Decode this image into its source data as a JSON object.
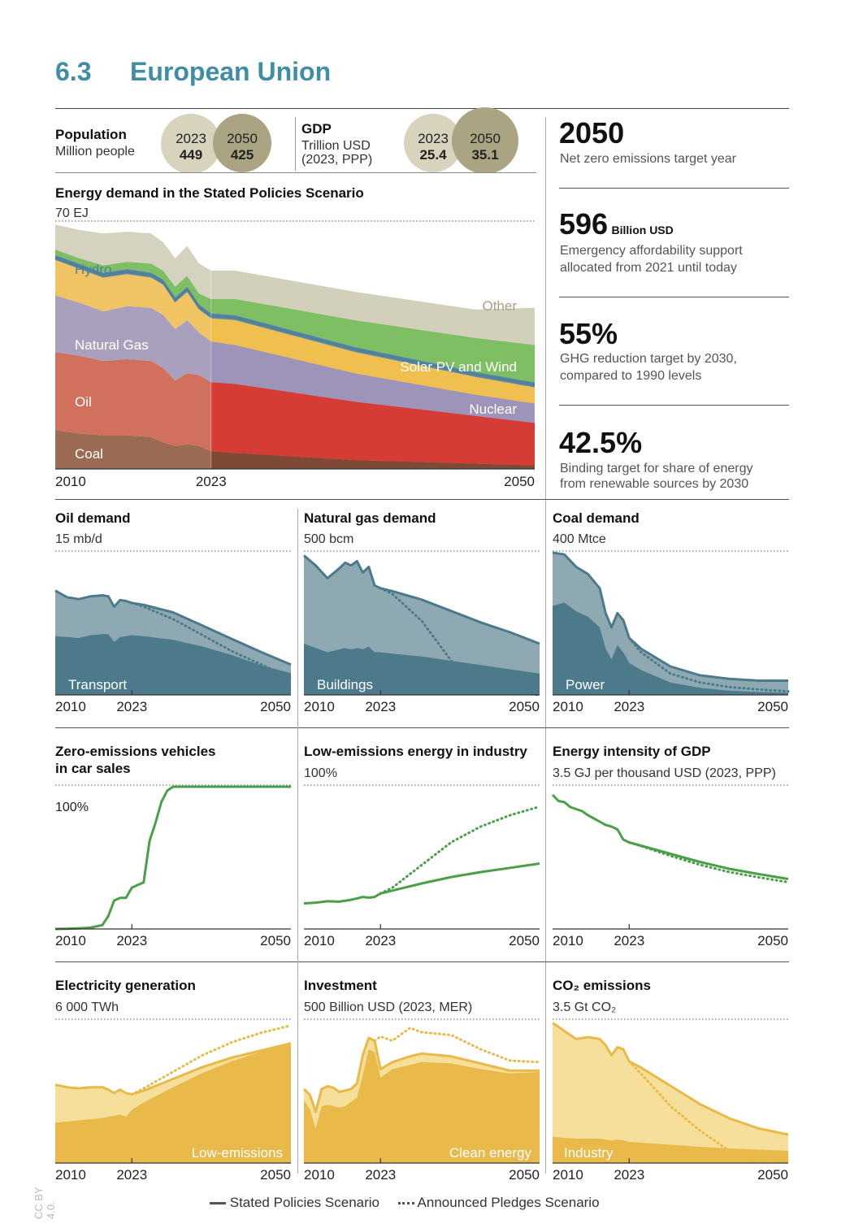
{
  "header": {
    "section_number": "6.3",
    "title": "European Union"
  },
  "population": {
    "label": "Population",
    "unit": "Million people",
    "y1": "2023",
    "v1": "449",
    "y2": "2050",
    "v2": "425"
  },
  "gdp": {
    "label": "GDP",
    "unit": "Trillion USD",
    "unit2": "(2023, PPP)",
    "y1": "2023",
    "v1": "25.4",
    "y2": "2050",
    "v2": "35.1"
  },
  "facts": [
    {
      "value": "2050",
      "unit": "",
      "line1": "Net zero emissions target year",
      "line2": ""
    },
    {
      "value": "596",
      "unit": "Billion USD",
      "line1": "Emergency affordability support",
      "line2": "allocated from 2021 until today"
    },
    {
      "value": "55%",
      "unit": "",
      "line1": "GHG reduction target by 2030,",
      "line2": "compared to 1990 levels"
    },
    {
      "value": "42.5%",
      "unit": "",
      "line1": "Binding target for share of energy",
      "line2": "from renewable sources by 2030"
    }
  ],
  "legend": {
    "sps": "Stated Policies Scenario",
    "aps": "Announced Pledges Scenario"
  },
  "license": "CC BY 4.0.",
  "colors": {
    "accent": "#3f8ea3",
    "teal_dark": "#4c7a8b",
    "teal_light": "#8fa9b3",
    "green": "#4a9f48",
    "gold": "#e9b949",
    "gold_light": "#f6df9a"
  },
  "chart_data": [
    {
      "id": "energy",
      "type": "area",
      "title": "Energy demand in the Stated Policies Scenario",
      "ymax_label": "70 EJ",
      "ylim": [
        0,
        70
      ],
      "x": [
        2010,
        2012,
        2014,
        2016,
        2018,
        2019,
        2020,
        2021,
        2022,
        2023,
        2025,
        2030,
        2035,
        2040,
        2045,
        2050
      ],
      "x_ticks": [
        "2010",
        "2023",
        "2050"
      ],
      "series": [
        {
          "name": "Coal",
          "color": "#9a6a52",
          "values": [
            11,
            10,
            9.5,
            9.5,
            9,
            7.5,
            6.5,
            7,
            6.5,
            5,
            4.5,
            3.5,
            2.5,
            2,
            1.5,
            1
          ]
        },
        {
          "name": "Oil",
          "color": "#d2705e",
          "values": [
            22,
            22,
            21,
            21.5,
            21.5,
            21,
            18.5,
            20,
            20,
            19.5,
            19.5,
            18,
            16.5,
            15,
            13.5,
            12
          ]
        },
        {
          "name": "Natural Gas",
          "color": "#a9a0bd",
          "values": [
            16,
            15,
            14,
            15,
            15,
            15,
            14.5,
            15,
            12,
            11.5,
            11,
            9.5,
            8,
            7,
            6,
            5.5
          ]
        },
        {
          "name": "Nuclear",
          "color": "#f1c463",
          "values": [
            10,
            9.5,
            9.5,
            9,
            8.5,
            8.5,
            7.5,
            8,
            6.5,
            6.5,
            7,
            6.5,
            6,
            5.5,
            5,
            4.5
          ]
        },
        {
          "name": "Hydro",
          "color": "#5f8da3",
          "values": [
            1.5,
            1.5,
            1.5,
            1.5,
            1.5,
            1.5,
            1.5,
            1.5,
            1.5,
            1.5,
            1.5,
            1.5,
            1.5,
            1.5,
            1.5,
            1.5
          ]
        },
        {
          "name": "Solar PV and Wind",
          "color": "#7fbf64",
          "values": [
            1.5,
            1.5,
            2,
            2,
            2.5,
            2.5,
            3,
            3,
            3,
            4,
            4.5,
            6,
            7.5,
            8.5,
            9.5,
            10.5
          ]
        },
        {
          "name": "Other",
          "color": "#d5d3bf",
          "values": [
            7,
            8,
            9,
            8.5,
            8.5,
            8,
            8,
            8.5,
            8.5,
            8,
            8,
            8,
            8,
            8,
            8,
            10.5
          ]
        }
      ]
    },
    {
      "id": "oil",
      "type": "area",
      "title": "Oil demand",
      "ymax_label": "15 mb/d",
      "ylim": [
        0,
        15
      ],
      "x": [
        2010,
        2012,
        2014,
        2016,
        2018,
        2019,
        2020,
        2021,
        2022,
        2023,
        2025,
        2030,
        2035,
        2040,
        2045,
        2050
      ],
      "x_ticks": [
        "2010",
        "2023",
        "2050"
      ],
      "area_label": "Transport",
      "series": [
        {
          "name": "Transport",
          "role": "inner",
          "values": [
            6.2,
            6.1,
            6.0,
            6.3,
            6.4,
            6.4,
            5.6,
            6.1,
            6.2,
            6.3,
            6.2,
            5.8,
            5.1,
            4.2,
            3.1,
            2.3
          ]
        },
        {
          "name": "Stated Policies Scenario",
          "role": "sps",
          "values": [
            11.0,
            10.3,
            10.1,
            10.4,
            10.5,
            10.4,
            9.3,
            10.0,
            9.9,
            9.7,
            9.5,
            8.7,
            7.3,
            5.9,
            4.5,
            3.2
          ]
        },
        {
          "name": "Announced Pledges Scenario",
          "role": "aps",
          "values": [
            null,
            null,
            null,
            null,
            null,
            null,
            null,
            null,
            null,
            9.7,
            9.3,
            8.0,
            6.3,
            4.6,
            3.2,
            1.8
          ]
        }
      ]
    },
    {
      "id": "gas",
      "type": "area",
      "title": "Natural gas demand",
      "ymax_label": "500 bcm",
      "ylim": [
        0,
        500
      ],
      "x": [
        2010,
        2012,
        2014,
        2016,
        2017,
        2018,
        2019,
        2020,
        2021,
        2022,
        2023,
        2025,
        2030,
        2035,
        2040,
        2045,
        2050
      ],
      "x_ticks": [
        "2010",
        "2023",
        "2050"
      ],
      "area_label": "Buildings",
      "series": [
        {
          "name": "Buildings",
          "role": "inner",
          "values": [
            180,
            165,
            150,
            160,
            165,
            160,
            165,
            160,
            170,
            150,
            150,
            145,
            135,
            120,
            105,
            90,
            75
          ]
        },
        {
          "name": "Stated Policies Scenario",
          "role": "sps",
          "values": [
            490,
            455,
            410,
            445,
            465,
            455,
            470,
            430,
            450,
            385,
            375,
            365,
            335,
            295,
            255,
            220,
            180
          ]
        },
        {
          "name": "Announced Pledges Scenario",
          "role": "aps",
          "values": [
            null,
            null,
            null,
            null,
            null,
            null,
            null,
            null,
            null,
            null,
            375,
            355,
            260,
            120,
            40,
            10,
            0
          ]
        }
      ]
    },
    {
      "id": "coal",
      "type": "area",
      "title": "Coal demand",
      "ymax_label": "400 Mtce",
      "ylim": [
        0,
        400
      ],
      "x": [
        2010,
        2012,
        2014,
        2016,
        2018,
        2019,
        2020,
        2021,
        2022,
        2023,
        2025,
        2030,
        2035,
        2040,
        2045,
        2050
      ],
      "x_ticks": [
        "2010",
        "2023",
        "2050"
      ],
      "area_label": "Power",
      "series": [
        {
          "name": "Power",
          "role": "inner",
          "values": [
            250,
            260,
            235,
            220,
            190,
            130,
            100,
            140,
            120,
            90,
            70,
            35,
            20,
            12,
            8,
            6
          ]
        },
        {
          "name": "Stated Policies Scenario",
          "role": "sps",
          "values": [
            400,
            395,
            360,
            340,
            300,
            230,
            190,
            230,
            210,
            160,
            130,
            80,
            55,
            45,
            40,
            40
          ]
        },
        {
          "name": "Announced Pledges Scenario",
          "role": "aps",
          "values": [
            null,
            null,
            null,
            null,
            null,
            null,
            null,
            null,
            null,
            160,
            120,
            60,
            35,
            22,
            15,
            10
          ]
        }
      ]
    },
    {
      "id": "zev",
      "type": "line",
      "title": "Zero-emissions vehicles",
      "title2": "in car sales",
      "ymax_label": "100%",
      "ylim": [
        0,
        110
      ],
      "x": [
        2010,
        2012,
        2014,
        2016,
        2018,
        2019,
        2020,
        2021,
        2022,
        2023,
        2024,
        2025,
        2026,
        2027,
        2028,
        2029,
        2030,
        2035,
        2040,
        2045,
        2050
      ],
      "x_ticks": [
        "2010",
        "2023",
        "2050"
      ],
      "series": [
        {
          "name": "Stated Policies Scenario",
          "role": "sps",
          "values": [
            0,
            0.2,
            0.5,
            1,
            3,
            10,
            22,
            24,
            24,
            32,
            34,
            36,
            68,
            82,
            98,
            107,
            110,
            110,
            110,
            110,
            110
          ]
        }
      ]
    },
    {
      "id": "industry",
      "type": "line",
      "title": "Low-emissions energy in industry",
      "ymax_label": "100%",
      "ylim": [
        0,
        100
      ],
      "x": [
        2010,
        2012,
        2014,
        2016,
        2018,
        2019,
        2020,
        2021,
        2022,
        2023,
        2025,
        2030,
        2035,
        2040,
        2045,
        2050
      ],
      "x_ticks": [
        "2010",
        "2023",
        "2050"
      ],
      "series": [
        {
          "name": "Stated Policies Scenario",
          "role": "sps",
          "values": [
            18,
            18.5,
            19.5,
            19.2,
            20.5,
            21.5,
            22.5,
            22,
            22.5,
            25,
            27,
            32,
            36.5,
            40,
            43,
            46
          ]
        },
        {
          "name": "Announced Pledges Scenario",
          "role": "aps",
          "values": [
            null,
            null,
            null,
            null,
            null,
            null,
            null,
            null,
            null,
            25,
            29,
            45,
            61,
            72,
            80,
            86
          ]
        }
      ]
    },
    {
      "id": "intensity",
      "type": "line",
      "title": "Energy intensity of GDP",
      "ymax_label": "3.5 GJ per thousand USD (2023, PPP)",
      "ylim": [
        0,
        3.5
      ],
      "x": [
        2010,
        2011,
        2012,
        2013,
        2014,
        2015,
        2016,
        2017,
        2018,
        2019,
        2020,
        2021,
        2022,
        2023,
        2025,
        2030,
        2035,
        2040,
        2045,
        2050
      ],
      "x_ticks": [
        "2010",
        "2023",
        "2050"
      ],
      "series": [
        {
          "name": "Stated Policies Scenario",
          "role": "sps",
          "values": [
            3.3,
            3.15,
            3.12,
            3.0,
            2.95,
            2.9,
            2.8,
            2.72,
            2.64,
            2.56,
            2.52,
            2.45,
            2.2,
            2.13,
            2.05,
            1.85,
            1.65,
            1.48,
            1.35,
            1.23
          ]
        },
        {
          "name": "Announced Pledges Scenario",
          "role": "aps",
          "values": [
            null,
            null,
            null,
            null,
            null,
            null,
            null,
            null,
            null,
            null,
            null,
            null,
            null,
            2.13,
            2.04,
            1.8,
            1.58,
            1.4,
            1.27,
            1.15
          ]
        }
      ]
    },
    {
      "id": "elec",
      "type": "area",
      "title": "Electricity generation",
      "ymax_label": "6 000 TWh",
      "ylim": [
        0,
        6000
      ],
      "x": [
        2010,
        2012,
        2014,
        2016,
        2018,
        2019,
        2020,
        2021,
        2022,
        2023,
        2025,
        2030,
        2035,
        2040,
        2045,
        2050
      ],
      "x_ticks": [
        "2010",
        "2023",
        "2050"
      ],
      "area_label": "Low-emissions",
      "series": [
        {
          "name": "Low-emissions",
          "role": "inner",
          "values": [
            1700,
            1750,
            1800,
            1850,
            1900,
            1950,
            2000,
            2050,
            1950,
            2250,
            2550,
            3200,
            3800,
            4300,
            4700,
            5000
          ]
        },
        {
          "name": "Stated Policies Scenario",
          "role": "sps",
          "values": [
            3300,
            3200,
            3150,
            3200,
            3200,
            3100,
            2950,
            3100,
            2950,
            2900,
            3050,
            3550,
            4050,
            4450,
            4750,
            5050
          ]
        },
        {
          "name": "Announced Pledges Scenario",
          "role": "aps",
          "values": [
            null,
            null,
            null,
            null,
            null,
            null,
            null,
            null,
            null,
            2900,
            3150,
            3850,
            4550,
            5100,
            5500,
            5800
          ]
        }
      ]
    },
    {
      "id": "invest",
      "type": "area",
      "title": "Investment",
      "ymax_label": "500 Billion USD (2023, MER)",
      "ylim": [
        0,
        500
      ],
      "x": [
        2010,
        2011,
        2012,
        2013,
        2014,
        2015,
        2016,
        2017,
        2018,
        2019,
        2020,
        2021,
        2022,
        2023,
        2025,
        2028,
        2030,
        2035,
        2040,
        2045,
        2050
      ],
      "x_ticks": [
        "2010",
        "2023",
        "2050"
      ],
      "area_label": "Clean energy",
      "series": [
        {
          "name": "Clean energy",
          "role": "inner",
          "values": [
            220,
            190,
            120,
            200,
            205,
            200,
            195,
            200,
            215,
            230,
            310,
            400,
            390,
            300,
            330,
            345,
            355,
            350,
            330,
            315,
            320
          ]
        },
        {
          "name": "Stated Policies Scenario",
          "role": "sps",
          "values": [
            260,
            240,
            180,
            260,
            270,
            265,
            250,
            255,
            260,
            280,
            380,
            440,
            430,
            330,
            355,
            375,
            385,
            375,
            350,
            325,
            325
          ]
        },
        {
          "name": "Announced Pledges Scenario",
          "role": "aps",
          "values": [
            null,
            null,
            null,
            null,
            null,
            null,
            null,
            null,
            null,
            null,
            null,
            null,
            430,
            445,
            430,
            475,
            460,
            450,
            400,
            360,
            355
          ]
        }
      ]
    },
    {
      "id": "co2",
      "type": "area",
      "title": "CO₂ emissions",
      "ymax_label": "3.5 Gt CO₂",
      "ylim": [
        0,
        3.5
      ],
      "x": [
        2010,
        2012,
        2014,
        2016,
        2018,
        2019,
        2020,
        2021,
        2022,
        2023,
        2025,
        2030,
        2035,
        2040,
        2045,
        2050
      ],
      "x_ticks": [
        "2010",
        "2023",
        "2050"
      ],
      "area_label": "Industry",
      "series": [
        {
          "name": "Industry",
          "role": "inner",
          "values": [
            0.65,
            0.62,
            0.6,
            0.6,
            0.6,
            0.58,
            0.55,
            0.58,
            0.56,
            0.52,
            0.5,
            0.45,
            0.4,
            0.36,
            0.33,
            0.3
          ]
        },
        {
          "name": "Stated Policies Scenario",
          "role": "sps",
          "values": [
            3.45,
            3.25,
            3.05,
            3.1,
            3.05,
            2.9,
            2.65,
            2.85,
            2.8,
            2.5,
            2.35,
            1.9,
            1.45,
            1.1,
            0.85,
            0.7
          ]
        },
        {
          "name": "Announced Pledges Scenario",
          "role": "aps",
          "values": [
            null,
            null,
            null,
            null,
            null,
            null,
            null,
            null,
            null,
            2.5,
            2.2,
            1.4,
            0.8,
            0.3,
            0.1,
            0.05
          ]
        }
      ]
    }
  ]
}
